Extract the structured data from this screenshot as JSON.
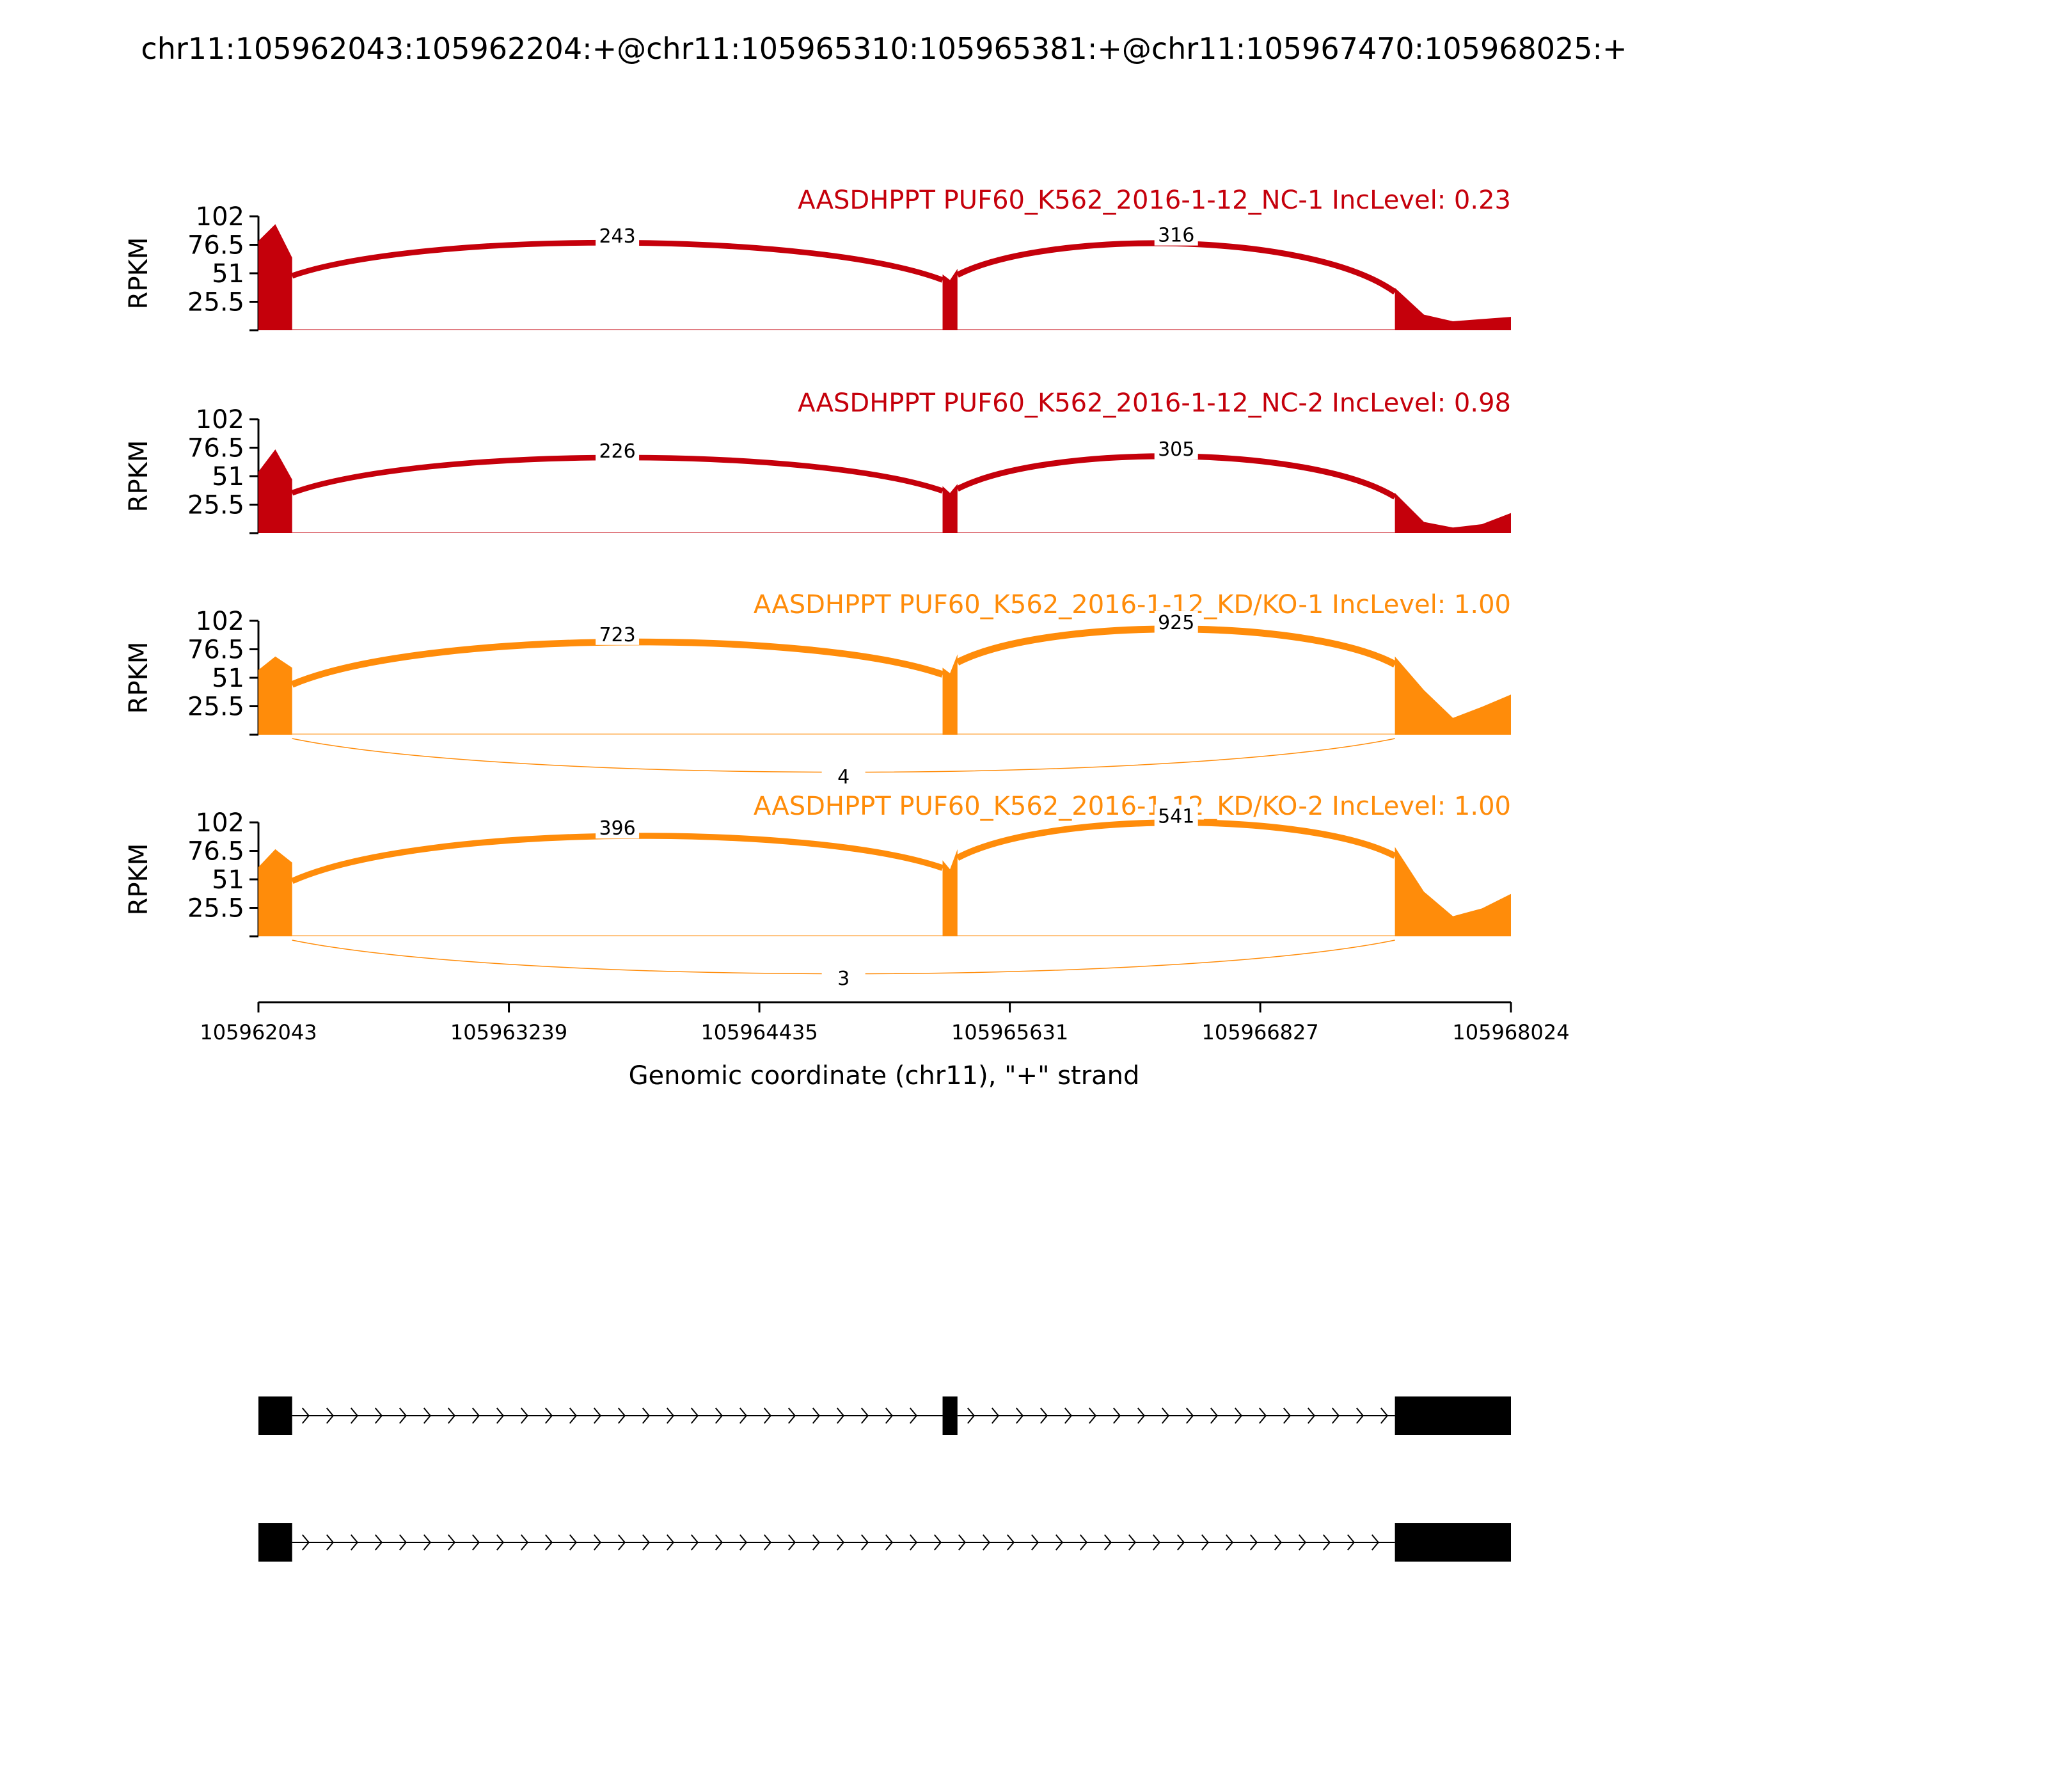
{
  "chart_data": {
    "type": "area",
    "title": "chr11:105962043:105962204:+@chr11:105965310:105965381:+@chr11:105967470:105968025:+",
    "xlabel": "Genomic coordinate (chr11), \"+\" strand",
    "ylabel": "RPKM",
    "xlim": [
      105962043,
      105968024
    ],
    "x_ticks": [
      "105962043",
      "105963239",
      "105964435",
      "105965631",
      "105966827",
      "105968024"
    ],
    "ylim": [
      0,
      102
    ],
    "y_ticks": [
      "25.5",
      "51",
      "76.5",
      "102"
    ],
    "exons": [
      [
        105962043,
        105962204
      ],
      [
        105965310,
        105965381
      ],
      [
        105967470,
        105968025
      ]
    ],
    "panels": [
      {
        "label": "AASDHPPT PUF60_K562_2016-1-12_NC-1 IncLevel: 0.23",
        "color": "#C5000B",
        "coverage": {
          "exon1": [
            80,
            95,
            65
          ],
          "exon2": [
            50,
            45,
            55
          ],
          "exon3": [
            38,
            14,
            8,
            10,
            12
          ]
        },
        "junctions": [
          {
            "from": 105962204,
            "to": 105965310,
            "count": "243",
            "side": "above"
          },
          {
            "from": 105965381,
            "to": 105967470,
            "count": "316",
            "side": "above"
          }
        ]
      },
      {
        "label": "AASDHPPT PUF60_K562_2016-1-12_NC-2 IncLevel: 0.98",
        "color": "#C5000B",
        "coverage": {
          "exon1": [
            55,
            75,
            48
          ],
          "exon2": [
            42,
            36,
            44
          ],
          "exon3": [
            36,
            10,
            5,
            8,
            18
          ]
        },
        "junctions": [
          {
            "from": 105962204,
            "to": 105965310,
            "count": "226",
            "side": "above"
          },
          {
            "from": 105965381,
            "to": 105967470,
            "count": "305",
            "side": "above"
          }
        ]
      },
      {
        "label": "AASDHPPT PUF60_K562_2016-1-12_KD/KO-1 IncLevel: 1.00",
        "color": "#FF8C0A",
        "coverage": {
          "exon1": [
            58,
            70,
            60
          ],
          "exon2": [
            60,
            55,
            72
          ],
          "exon3": [
            70,
            40,
            15,
            25,
            36
          ]
        },
        "junctions": [
          {
            "from": 105962204,
            "to": 105965310,
            "count": "723",
            "side": "above"
          },
          {
            "from": 105965381,
            "to": 105967470,
            "count": "925",
            "side": "above"
          },
          {
            "from": 105962204,
            "to": 105967470,
            "count": "4",
            "side": "below"
          }
        ]
      },
      {
        "label": "AASDHPPT PUF60_K562_2016-1-12_KD/KO-2 IncLevel: 1.00",
        "color": "#FF8C0A",
        "coverage": {
          "exon1": [
            62,
            78,
            66
          ],
          "exon2": [
            68,
            60,
            78
          ],
          "exon3": [
            80,
            40,
            18,
            25,
            38
          ]
        },
        "junctions": [
          {
            "from": 105962204,
            "to": 105965310,
            "count": "396",
            "side": "above"
          },
          {
            "from": 105965381,
            "to": 105967470,
            "count": "541",
            "side": "above"
          },
          {
            "from": 105962204,
            "to": 105967470,
            "count": "3",
            "side": "below"
          }
        ]
      }
    ],
    "transcripts": [
      {
        "exons": [
          [
            105962043,
            105962204
          ],
          [
            105965310,
            105965381
          ],
          [
            105967470,
            105968025
          ]
        ]
      },
      {
        "exons": [
          [
            105962043,
            105962204
          ],
          [
            105967470,
            105968025
          ]
        ]
      }
    ]
  }
}
